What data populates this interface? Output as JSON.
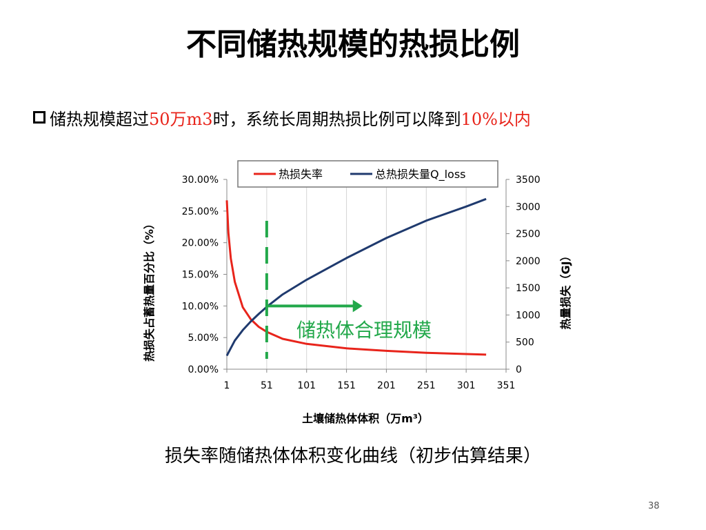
{
  "slide": {
    "title": "不同储热规模的热损比例",
    "bullet": {
      "prefix": "储热规模超过",
      "highlight1": "50万m3",
      "middle": "时，系统长周期热损比例可以降到",
      "highlight2": "10%以内"
    },
    "caption": "损失率随储热体体积变化曲线（初步估算结果）",
    "page_number": "38"
  },
  "colors": {
    "rate_line": "#e8241b",
    "loss_line": "#1f3a6e",
    "annotation": "#22a84a",
    "highlight_text": "#e8241b"
  },
  "chart_data": {
    "type": "line",
    "xlabel": "土壤储热体体积（万m³）",
    "ylabel_left": "热损失占蓄热量百分比（%）",
    "ylabel_right": "热量损失（GJ）",
    "x_ticks": [
      1,
      51,
      101,
      151,
      201,
      251,
      301,
      351
    ],
    "xlim": [
      1,
      351
    ],
    "y_left_ticks": [
      "0.00%",
      "5.00%",
      "10.00%",
      "15.00%",
      "20.00%",
      "25.00%",
      "30.00%"
    ],
    "ylim_left": [
      0,
      30
    ],
    "y_right_ticks": [
      0,
      500,
      1000,
      1500,
      2000,
      2500,
      3000,
      3500
    ],
    "ylim_right": [
      0,
      3500
    ],
    "legend_position": "top",
    "series": [
      {
        "name": "热损失率",
        "axis": "left",
        "x": [
          1,
          3,
          6,
          11,
          21,
          31,
          41,
          51,
          71,
          101,
          151,
          201,
          251,
          301,
          326
        ],
        "y": [
          26.7,
          21.5,
          17.5,
          13.8,
          9.8,
          7.9,
          6.7,
          5.9,
          4.8,
          4.0,
          3.3,
          2.9,
          2.6,
          2.4,
          2.3
        ]
      },
      {
        "name": "总热损失量Q_loss",
        "axis": "right",
        "x": [
          1,
          11,
          21,
          31,
          41,
          51,
          71,
          101,
          151,
          201,
          251,
          301,
          326
        ],
        "y": [
          250,
          530,
          720,
          880,
          1020,
          1150,
          1380,
          1650,
          2050,
          2420,
          2740,
          3000,
          3140
        ]
      }
    ],
    "annotation": {
      "text": "储热体合理规模",
      "x": 51,
      "arrow_to_x": 171,
      "arrow_y_percent": 10
    }
  }
}
